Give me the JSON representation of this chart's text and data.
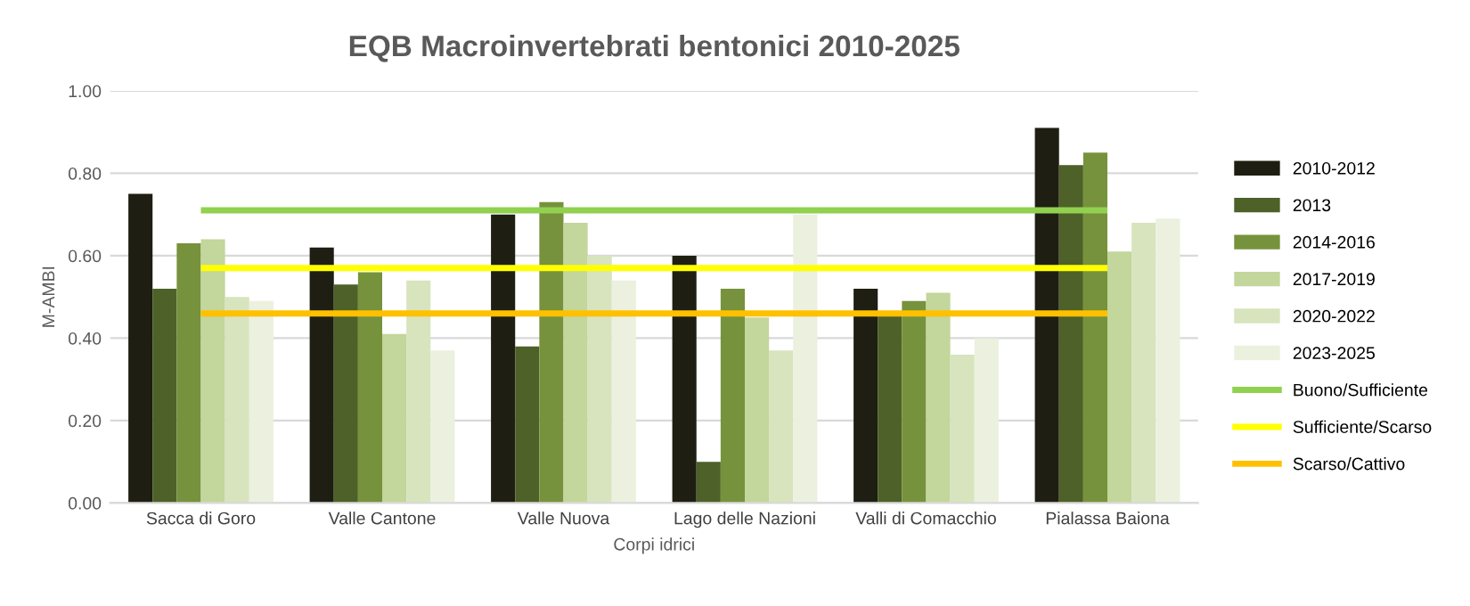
{
  "chart_data": {
    "type": "bar",
    "title": "EQB Macroinvertebrati bentonici 2010-2025",
    "xlabel": "Corpi idrici",
    "ylabel": "M-AMBI",
    "categories": [
      "Sacca di Goro",
      "Valle Cantone",
      "Valle Nuova",
      "Lago delle Nazioni",
      "Valli di Comacchio",
      "Pialassa Baiona"
    ],
    "series": [
      {
        "name": "2010-2012",
        "color": "#1f1e12",
        "values": [
          0.75,
          0.62,
          0.7,
          0.6,
          0.52,
          0.91
        ]
      },
      {
        "name": "2013",
        "color": "#4d6128",
        "values": [
          0.52,
          0.53,
          0.38,
          0.1,
          0.46,
          0.82
        ]
      },
      {
        "name": "2014-2016",
        "color": "#76923c",
        "values": [
          0.63,
          0.56,
          0.73,
          0.52,
          0.49,
          0.85
        ]
      },
      {
        "name": "2017-2019",
        "color": "#c3d69b",
        "values": [
          0.64,
          0.41,
          0.68,
          0.45,
          0.51,
          0.61
        ]
      },
      {
        "name": "2020-2022",
        "color": "#d7e4bd",
        "values": [
          0.5,
          0.54,
          0.6,
          0.37,
          0.36,
          0.68
        ]
      },
      {
        "name": "2023-2025",
        "color": "#ebf1de",
        "values": [
          0.49,
          0.37,
          0.54,
          0.7,
          0.4,
          0.69
        ]
      }
    ],
    "ref_lines": [
      {
        "axis": "y",
        "value": 0.71,
        "label": "Buono/Sufficiente",
        "color": "#92d050"
      },
      {
        "axis": "y",
        "value": 0.57,
        "label": "Sufficiente/Scarso",
        "color": "#ffff00"
      },
      {
        "axis": "y",
        "value": 0.46,
        "label": "Scarso/Cattivo",
        "color": "#ffc000"
      }
    ],
    "ylim": [
      0,
      1.0
    ],
    "yticks": [
      {
        "value": 0,
        "label": "0.00"
      },
      {
        "value": 0.2,
        "label": "0.20"
      },
      {
        "value": 0.4,
        "label": "0.40"
      },
      {
        "value": 0.6,
        "label": "0.60"
      },
      {
        "value": 0.8,
        "label": "0.80"
      },
      {
        "value": 1.0,
        "label": "1.00"
      }
    ],
    "grid": "y",
    "legend": "right"
  }
}
